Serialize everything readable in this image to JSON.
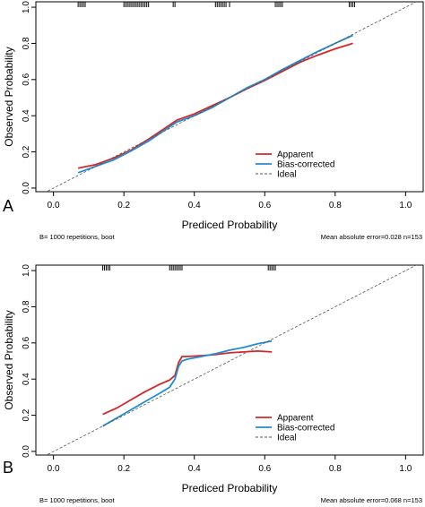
{
  "chart_data": [
    {
      "type": "line",
      "panel_label": "A",
      "xlabel": "Prediced Probability",
      "ylabel": "Observed Probability",
      "xlim": [
        -0.05,
        1.05
      ],
      "ylim": [
        -0.02,
        1.03
      ],
      "x_ticks": [
        "0.0",
        "0.2",
        "0.4",
        "0.6",
        "0.8",
        "1.0"
      ],
      "y_ticks": [
        "0.0",
        "0.2",
        "0.4",
        "0.6",
        "0.8",
        "1.0"
      ],
      "footer_left": "B= 1000 repetitions, boot",
      "footer_right": "Mean absolute error=0.028 n=153",
      "legend": {
        "position": "bottom-right",
        "entries": [
          {
            "label": "Apparent",
            "color": "#d62728",
            "style": "solid"
          },
          {
            "label": "Bias-corrected",
            "color": "#1f8dd6",
            "style": "solid"
          },
          {
            "label": "Ideal",
            "color": "#555555",
            "style": "dashed"
          }
        ]
      },
      "series": [
        {
          "name": "Apparent",
          "color": "#d62728",
          "x": [
            0.07,
            0.12,
            0.17,
            0.22,
            0.27,
            0.32,
            0.35,
            0.4,
            0.45,
            0.5,
            0.55,
            0.6,
            0.65,
            0.7,
            0.75,
            0.8,
            0.85
          ],
          "y": [
            0.11,
            0.13,
            0.165,
            0.21,
            0.27,
            0.335,
            0.375,
            0.41,
            0.455,
            0.5,
            0.55,
            0.595,
            0.645,
            0.695,
            0.735,
            0.77,
            0.8
          ]
        },
        {
          "name": "Bias-corrected",
          "color": "#1f8dd6",
          "x": [
            0.07,
            0.12,
            0.17,
            0.22,
            0.27,
            0.32,
            0.35,
            0.4,
            0.45,
            0.5,
            0.55,
            0.6,
            0.65,
            0.7,
            0.75,
            0.8,
            0.85
          ],
          "y": [
            0.085,
            0.12,
            0.155,
            0.205,
            0.26,
            0.325,
            0.365,
            0.4,
            0.445,
            0.5,
            0.555,
            0.6,
            0.655,
            0.705,
            0.755,
            0.8,
            0.845
          ]
        },
        {
          "name": "Ideal",
          "color": "#555555",
          "dashed": true,
          "x": [
            -0.05,
            1.05
          ],
          "y": [
            -0.05,
            1.05
          ]
        }
      ],
      "rug_x": [
        0.07,
        0.075,
        0.08,
        0.085,
        0.09,
        0.2,
        0.205,
        0.21,
        0.215,
        0.22,
        0.225,
        0.23,
        0.235,
        0.24,
        0.245,
        0.25,
        0.255,
        0.26,
        0.265,
        0.27,
        0.34,
        0.345,
        0.46,
        0.465,
        0.47,
        0.475,
        0.48,
        0.485,
        0.49,
        0.5,
        0.63,
        0.635,
        0.64,
        0.645,
        0.65,
        0.84,
        0.845,
        0.85,
        0.855
      ]
    },
    {
      "type": "line",
      "panel_label": "B",
      "xlabel": "Prediced Probability",
      "ylabel": "Observed Probability",
      "xlim": [
        -0.05,
        1.05
      ],
      "ylim": [
        -0.02,
        1.03
      ],
      "x_ticks": [
        "0.0",
        "0.2",
        "0.4",
        "0.6",
        "0.8",
        "1.0"
      ],
      "y_ticks": [
        "0.0",
        "0.2",
        "0.4",
        "0.6",
        "0.8",
        "1.0"
      ],
      "footer_left": "B= 1000 repetitions, boot",
      "footer_right": "Mean absolute error=0.068 n=153",
      "legend": {
        "position": "bottom-right",
        "entries": [
          {
            "label": "Apparent",
            "color": "#d62728",
            "style": "solid"
          },
          {
            "label": "Bias-corrected",
            "color": "#1f8dd6",
            "style": "solid"
          },
          {
            "label": "Ideal",
            "color": "#555555",
            "style": "dashed"
          }
        ]
      },
      "series": [
        {
          "name": "Apparent",
          "color": "#d62728",
          "x": [
            0.14,
            0.18,
            0.22,
            0.26,
            0.3,
            0.33,
            0.345,
            0.355,
            0.365,
            0.38,
            0.42,
            0.46,
            0.5,
            0.54,
            0.58,
            0.62
          ],
          "y": [
            0.205,
            0.24,
            0.285,
            0.33,
            0.37,
            0.395,
            0.42,
            0.49,
            0.525,
            0.525,
            0.53,
            0.535,
            0.545,
            0.55,
            0.555,
            0.55
          ]
        },
        {
          "name": "Bias-corrected",
          "color": "#1f8dd6",
          "x": [
            0.14,
            0.18,
            0.22,
            0.26,
            0.3,
            0.33,
            0.345,
            0.355,
            0.365,
            0.38,
            0.42,
            0.46,
            0.5,
            0.54,
            0.58,
            0.62
          ],
          "y": [
            0.14,
            0.185,
            0.23,
            0.275,
            0.32,
            0.355,
            0.4,
            0.47,
            0.5,
            0.51,
            0.525,
            0.54,
            0.56,
            0.575,
            0.595,
            0.61
          ]
        },
        {
          "name": "Ideal",
          "color": "#555555",
          "dashed": true,
          "x": [
            -0.05,
            1.05
          ],
          "y": [
            -0.05,
            1.05
          ]
        }
      ],
      "rug_x": [
        0.14,
        0.145,
        0.15,
        0.155,
        0.16,
        0.33,
        0.335,
        0.34,
        0.345,
        0.35,
        0.355,
        0.36,
        0.365,
        0.61,
        0.615,
        0.62,
        0.625,
        0.63
      ]
    }
  ]
}
